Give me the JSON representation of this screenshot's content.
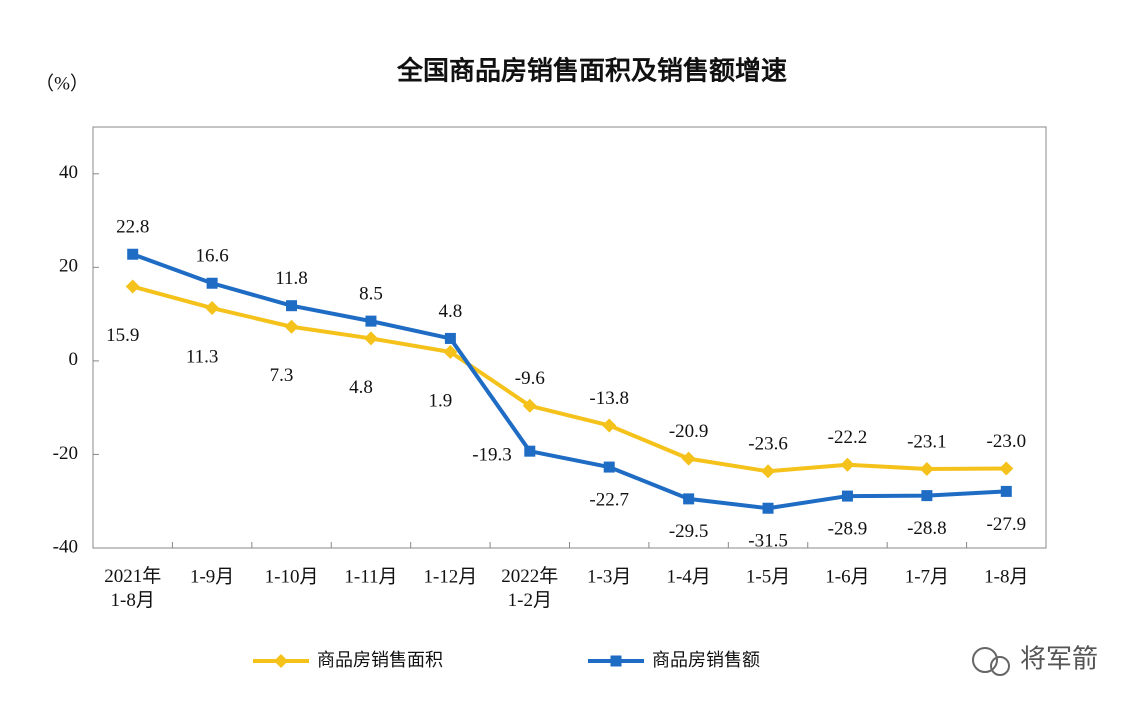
{
  "chart_data": {
    "type": "line",
    "title": "全国商品房销售面积及销售额增速",
    "y_label": "（%）",
    "categories": [
      "2021年\n1-8月",
      "1-9月",
      "1-10月",
      "1-11月",
      "1-12月",
      "2022年\n1-2月",
      "1-3月",
      "1-4月",
      "1-5月",
      "1-6月",
      "1-7月",
      "1-8月"
    ],
    "series": [
      {
        "name": "商品房销售面积",
        "color": "#f5c21b",
        "marker": "diamond",
        "values": [
          15.9,
          11.3,
          7.3,
          4.8,
          1.9,
          -9.6,
          -13.8,
          -20.9,
          -23.6,
          -22.2,
          -23.1,
          -23.0
        ],
        "value_labels": [
          "15.9",
          "11.3",
          "7.3",
          "4.8",
          "1.9",
          "-9.6",
          "-13.8",
          "-20.9",
          "-23.6",
          "-22.2",
          "-23.1",
          "-23.0"
        ]
      },
      {
        "name": "商品房销售额",
        "color": "#1f6cc4",
        "marker": "square",
        "values": [
          22.8,
          16.6,
          11.8,
          8.5,
          4.8,
          -19.3,
          -22.7,
          -29.5,
          -31.5,
          -28.9,
          -28.8,
          -27.9
        ]
      }
    ],
    "ylim": [
      -40,
      50
    ],
    "yticks": [
      -40,
      -20,
      0,
      20,
      40
    ],
    "grid": false,
    "legend": "bottom",
    "watermark": "将军箭"
  }
}
